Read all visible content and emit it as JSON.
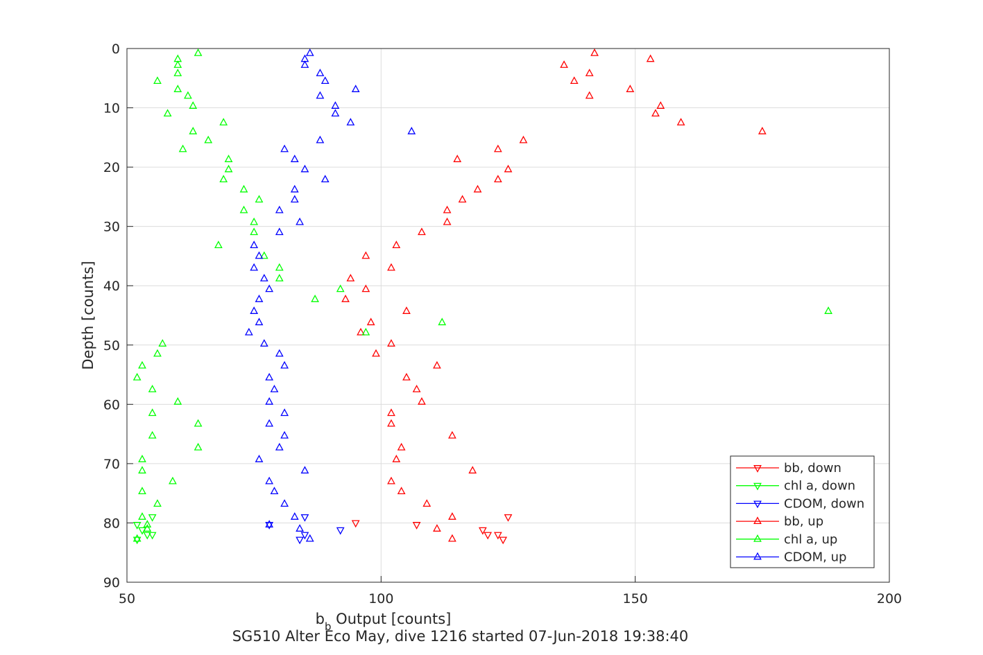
{
  "chart_data": {
    "type": "scatter",
    "title": "",
    "xlabel": "b",
    "xlabel_subscript": "b",
    "xlabel_suffix": " Output [counts]",
    "ylabel": "Depth [counts]",
    "footer": "SG510 Alter Eco May, dive 1216 started 07-Jun-2018 19:38:40",
    "xlim": [
      50,
      200
    ],
    "ylim": [
      0,
      90
    ],
    "y_reversed": true,
    "grid": true,
    "legend_position": "bottom-right",
    "x_ticks": [
      "50",
      "100",
      "150",
      "200"
    ],
    "y_ticks": [
      "0",
      "10",
      "20",
      "30",
      "40",
      "50",
      "60",
      "70",
      "80",
      "90"
    ],
    "series": [
      {
        "name": "bb, down",
        "color": "#ff0000",
        "marker": "triangle-down",
        "points": [
          [
            107,
            80.3
          ],
          [
            120,
            81.2
          ],
          [
            121,
            82
          ],
          [
            123,
            82
          ],
          [
            124,
            82.8
          ],
          [
            125,
            79
          ],
          [
            95,
            80
          ]
        ]
      },
      {
        "name": "chl a, down",
        "color": "#00ff00",
        "marker": "triangle-down",
        "points": [
          [
            52,
            80.3
          ],
          [
            53,
            81.2
          ],
          [
            54,
            82
          ],
          [
            55,
            82
          ],
          [
            52,
            82.8
          ],
          [
            55,
            79
          ]
        ]
      },
      {
        "name": "CDOM, down",
        "color": "#0000ff",
        "marker": "triangle-down",
        "points": [
          [
            78,
            80.3
          ],
          [
            85,
            82
          ],
          [
            84,
            82.8
          ],
          [
            85,
            79
          ],
          [
            92,
            81.2
          ]
        ]
      },
      {
        "name": "bb, up",
        "color": "#ff0000",
        "marker": "triangle-up",
        "points": [
          [
            142,
            0.8
          ],
          [
            153,
            1.8
          ],
          [
            136,
            2.8
          ],
          [
            141,
            4.2
          ],
          [
            138,
            5.5
          ],
          [
            149,
            6.9
          ],
          [
            141,
            8
          ],
          [
            155,
            9.7
          ],
          [
            154,
            11
          ],
          [
            159,
            12.5
          ],
          [
            175,
            14
          ],
          [
            128,
            15.5
          ],
          [
            123,
            17
          ],
          [
            115,
            18.7
          ],
          [
            125,
            20.4
          ],
          [
            123,
            22.1
          ],
          [
            119,
            23.8
          ],
          [
            116,
            25.5
          ],
          [
            113,
            27.3
          ],
          [
            113,
            29.3
          ],
          [
            108,
            31
          ],
          [
            103,
            33.2
          ],
          [
            97,
            35
          ],
          [
            102,
            37
          ],
          [
            94,
            38.8
          ],
          [
            97,
            40.6
          ],
          [
            93,
            42.3
          ],
          [
            105,
            44.3
          ],
          [
            98,
            46.2
          ],
          [
            96,
            47.9
          ],
          [
            102,
            49.8
          ],
          [
            99,
            51.5
          ],
          [
            111,
            53.5
          ],
          [
            105,
            55.5
          ],
          [
            107,
            57.5
          ],
          [
            108,
            59.6
          ],
          [
            102,
            61.5
          ],
          [
            102,
            63.3
          ],
          [
            114,
            65.3
          ],
          [
            104,
            67.3
          ],
          [
            103,
            69.3
          ],
          [
            118,
            71.2
          ],
          [
            102,
            73
          ],
          [
            104,
            74.7
          ],
          [
            109,
            76.8
          ],
          [
            114,
            79
          ],
          [
            111,
            81
          ],
          [
            114,
            82.7
          ]
        ]
      },
      {
        "name": "chl a, up",
        "color": "#00ff00",
        "marker": "triangle-up",
        "points": [
          [
            64,
            0.8
          ],
          [
            60,
            1.8
          ],
          [
            60,
            2.8
          ],
          [
            60,
            4.2
          ],
          [
            56,
            5.5
          ],
          [
            60,
            6.9
          ],
          [
            62,
            8
          ],
          [
            63,
            9.7
          ],
          [
            58,
            11
          ],
          [
            69,
            12.5
          ],
          [
            63,
            14
          ],
          [
            66,
            15.5
          ],
          [
            61,
            17
          ],
          [
            70,
            18.7
          ],
          [
            70,
            20.4
          ],
          [
            69,
            22.1
          ],
          [
            73,
            23.8
          ],
          [
            76,
            25.5
          ],
          [
            73,
            27.3
          ],
          [
            75,
            29.3
          ],
          [
            75,
            31
          ],
          [
            68,
            33.2
          ],
          [
            77,
            35
          ],
          [
            80,
            37
          ],
          [
            80,
            38.8
          ],
          [
            92,
            40.6
          ],
          [
            87,
            42.3
          ],
          [
            188,
            44.3
          ],
          [
            112,
            46.2
          ],
          [
            97,
            47.9
          ],
          [
            57,
            49.8
          ],
          [
            56,
            51.5
          ],
          [
            53,
            53.5
          ],
          [
            52,
            55.5
          ],
          [
            55,
            57.5
          ],
          [
            60,
            59.6
          ],
          [
            55,
            61.5
          ],
          [
            64,
            63.3
          ],
          [
            55,
            65.3
          ],
          [
            64,
            67.3
          ],
          [
            53,
            69.3
          ],
          [
            53,
            71.2
          ],
          [
            59,
            73
          ],
          [
            53,
            74.7
          ],
          [
            56,
            76.8
          ],
          [
            53,
            79
          ],
          [
            54,
            80.3
          ],
          [
            54,
            81
          ],
          [
            52,
            82.7
          ]
        ]
      },
      {
        "name": "CDOM, up",
        "color": "#0000ff",
        "marker": "triangle-up",
        "points": [
          [
            86,
            0.8
          ],
          [
            85,
            1.8
          ],
          [
            85,
            2.8
          ],
          [
            88,
            4.2
          ],
          [
            89,
            5.5
          ],
          [
            95,
            6.9
          ],
          [
            88,
            8
          ],
          [
            91,
            9.7
          ],
          [
            91,
            11
          ],
          [
            94,
            12.5
          ],
          [
            106,
            14
          ],
          [
            88,
            15.5
          ],
          [
            81,
            17
          ],
          [
            83,
            18.7
          ],
          [
            85,
            20.4
          ],
          [
            89,
            22.1
          ],
          [
            83,
            23.8
          ],
          [
            83,
            25.5
          ],
          [
            80,
            27.3
          ],
          [
            84,
            29.3
          ],
          [
            80,
            31
          ],
          [
            75,
            33.2
          ],
          [
            76,
            35
          ],
          [
            75,
            37
          ],
          [
            77,
            38.8
          ],
          [
            78,
            40.6
          ],
          [
            76,
            42.3
          ],
          [
            75,
            44.3
          ],
          [
            76,
            46.2
          ],
          [
            74,
            47.9
          ],
          [
            77,
            49.8
          ],
          [
            80,
            51.5
          ],
          [
            81,
            53.5
          ],
          [
            78,
            55.5
          ],
          [
            79,
            57.5
          ],
          [
            78,
            59.6
          ],
          [
            81,
            61.5
          ],
          [
            78,
            63.3
          ],
          [
            81,
            65.3
          ],
          [
            80,
            67.3
          ],
          [
            76,
            69.3
          ],
          [
            85,
            71.2
          ],
          [
            78,
            73
          ],
          [
            79,
            74.7
          ],
          [
            81,
            76.8
          ],
          [
            83,
            79
          ],
          [
            78,
            80.3
          ],
          [
            84,
            81
          ],
          [
            86,
            82.7
          ]
        ]
      }
    ]
  }
}
